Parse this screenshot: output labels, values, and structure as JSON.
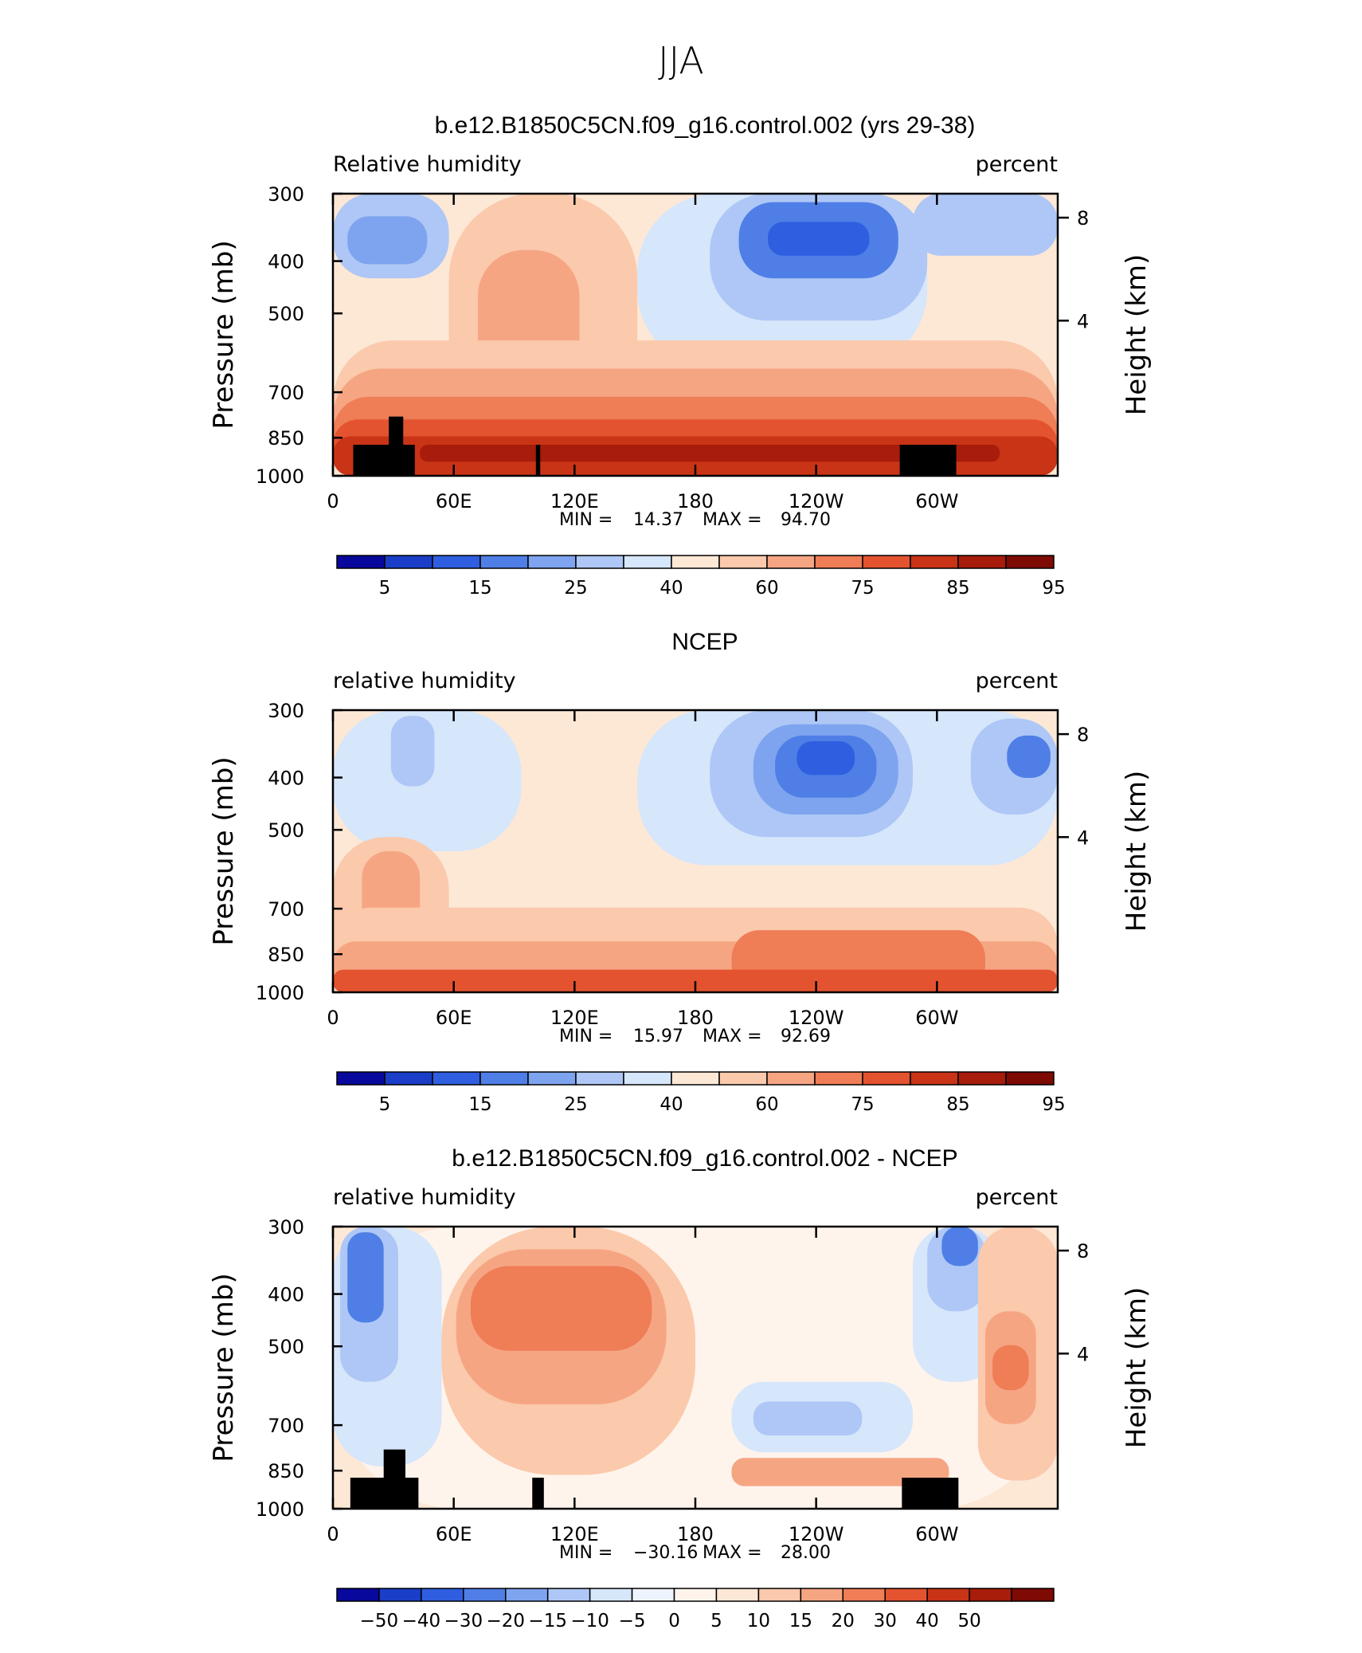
{
  "figure": {
    "title": "JJA"
  },
  "chart_data": [
    {
      "type": "heatmap",
      "title": "b.e12.B1850C5CN.f09_g16.control.002 (yrs 29-38)",
      "left_label": "Relative  humidity",
      "right_label": "percent",
      "ylabel": "Pressure  (mb)",
      "ylabel_right": "Height  (km)",
      "yticks": [
        "300",
        "400",
        "500",
        "700",
        "850",
        "1000"
      ],
      "yticks_right": [
        "8",
        "4"
      ],
      "xticks": [
        "0",
        "60E",
        "120E",
        "180",
        "120W",
        "60W"
      ],
      "min_label": "MIN =",
      "min_value": "14.37",
      "max_label": "MAX =",
      "max_value": "94.70",
      "colorbar_labels": [
        "5",
        "15",
        "25",
        "40",
        "60",
        "75",
        "85",
        "95"
      ],
      "colorbar_colors": [
        "#08089c",
        "#1a3ec8",
        "#2f5fe0",
        "#4f7fe6",
        "#7ea4ef",
        "#aec7f6",
        "#d6e6fb",
        "#fde8d6",
        "#fbc9ac",
        "#f6a583",
        "#ef7d56",
        "#e4532f",
        "#c93416",
        "#a71c0b",
        "#7e0a04"
      ]
    },
    {
      "type": "heatmap",
      "title": "NCEP",
      "left_label": "relative  humidity",
      "right_label": "percent",
      "ylabel": "Pressure  (mb)",
      "ylabel_right": "Height  (km)",
      "yticks": [
        "300",
        "400",
        "500",
        "700",
        "850",
        "1000"
      ],
      "yticks_right": [
        "8",
        "4"
      ],
      "xticks": [
        "0",
        "60E",
        "120E",
        "180",
        "120W",
        "60W"
      ],
      "min_label": "MIN =",
      "min_value": "15.97",
      "max_label": "MAX =",
      "max_value": "92.69",
      "colorbar_labels": [
        "5",
        "15",
        "25",
        "40",
        "60",
        "75",
        "85",
        "95"
      ],
      "colorbar_colors": [
        "#08089c",
        "#1a3ec8",
        "#2f5fe0",
        "#4f7fe6",
        "#7ea4ef",
        "#aec7f6",
        "#d6e6fb",
        "#fde8d6",
        "#fbc9ac",
        "#f6a583",
        "#ef7d56",
        "#e4532f",
        "#c93416",
        "#a71c0b",
        "#7e0a04"
      ]
    },
    {
      "type": "heatmap",
      "title": "b.e12.B1850C5CN.f09_g16.control.002 - NCEP",
      "left_label": "relative  humidity",
      "right_label": "percent",
      "ylabel": "Pressure  (mb)",
      "ylabel_right": "Height  (km)",
      "yticks": [
        "300",
        "400",
        "500",
        "700",
        "850",
        "1000"
      ],
      "yticks_right": [
        "8",
        "4"
      ],
      "xticks": [
        "0",
        "60E",
        "120E",
        "180",
        "120W",
        "60W"
      ],
      "min_label": "MIN =",
      "min_value": "−30.16",
      "max_label": "MAX =",
      "max_value": "28.00",
      "colorbar_labels": [
        "−50",
        "−40",
        "−30",
        "−20",
        "−15",
        "−10",
        "−5",
        "0",
        "5",
        "10",
        "15",
        "20",
        "30",
        "40",
        "50"
      ],
      "colorbar_colors": [
        "#08089c",
        "#1a3ec8",
        "#2f5fe0",
        "#4f7fe6",
        "#7ea4ef",
        "#aec7f6",
        "#d6e6fb",
        "#eef4fd",
        "#fff4ec",
        "#fde8d6",
        "#fbc9ac",
        "#f6a583",
        "#ef7d56",
        "#e4532f",
        "#c93416",
        "#a71c0b",
        "#7e0a04"
      ]
    }
  ]
}
